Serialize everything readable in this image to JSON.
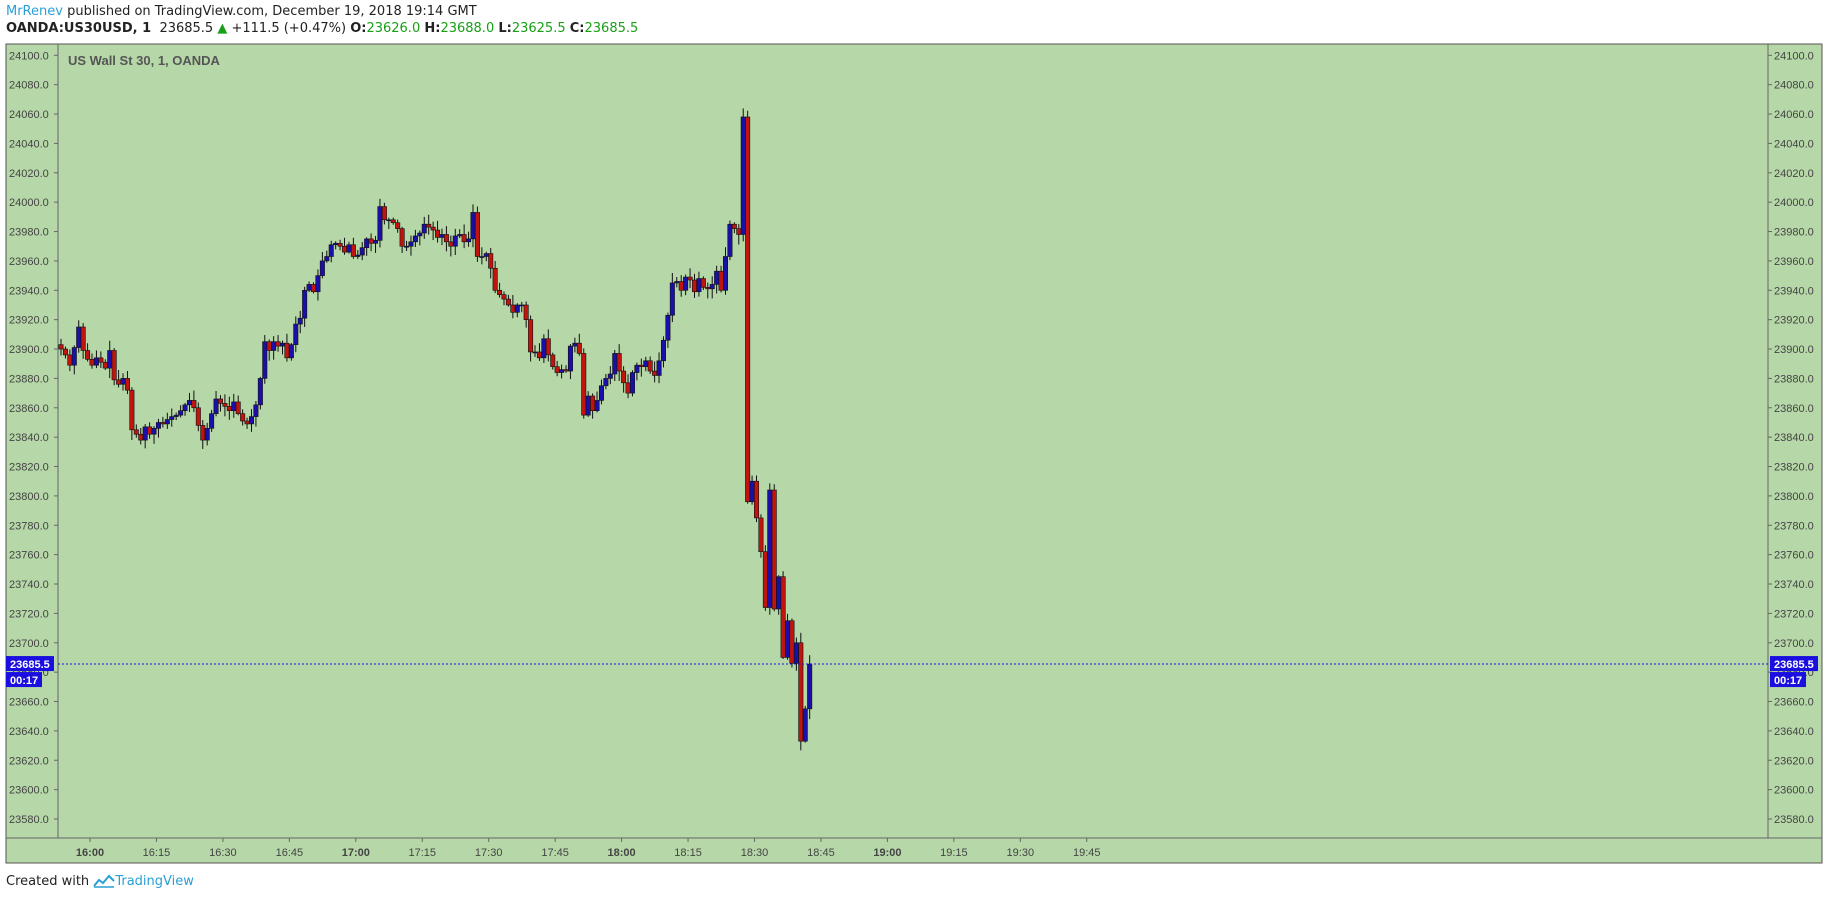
{
  "header": {
    "author": "MrRenev",
    "published_text": "published on TradingView.com, December 19, 2018 19:14 GMT",
    "symbol": "OANDA:US30USD, 1",
    "last_price": "23685.5",
    "change_arrow": "▲",
    "change": "+111.5 (+0.47%)",
    "open_label": "O:",
    "open": "23626.0",
    "high_label": "H:",
    "high": "23688.0",
    "low_label": "L:",
    "low": "23625.5",
    "close_label": "C:",
    "close": "23685.5"
  },
  "footer": {
    "created_with": "Created with",
    "brand": "TradingView"
  },
  "colors": {
    "background": "#b6d7a8",
    "bullish": "#1a0fa8",
    "bearish": "#c0140e",
    "wick": "#111111",
    "price_line": "#1a0fe0",
    "price_tag": "#1a0fe0",
    "text": "#444444"
  },
  "chart_data": {
    "type": "candlestick",
    "title": "US Wall St 30, 1, OANDA",
    "xlabel": "",
    "ylabel": "",
    "ylim": [
      23570,
      24110
    ],
    "grid": false,
    "y_ticks": [
      23580,
      23600,
      23620,
      23640,
      23660,
      23680,
      23700,
      23720,
      23740,
      23760,
      23780,
      23800,
      23820,
      23840,
      23860,
      23880,
      23900,
      23920,
      23940,
      23960,
      23980,
      24000,
      24020,
      24040,
      24060,
      24080,
      24100
    ],
    "x_ticks": [
      {
        "label": "16:00",
        "bold": true
      },
      {
        "label": "16:15",
        "bold": false
      },
      {
        "label": "16:30",
        "bold": false
      },
      {
        "label": "16:45",
        "bold": false
      },
      {
        "label": "17:00",
        "bold": true
      },
      {
        "label": "17:15",
        "bold": false
      },
      {
        "label": "17:30",
        "bold": false
      },
      {
        "label": "17:45",
        "bold": false
      },
      {
        "label": "18:00",
        "bold": true
      },
      {
        "label": "18:15",
        "bold": false
      },
      {
        "label": "18:30",
        "bold": false
      },
      {
        "label": "18:45",
        "bold": false
      },
      {
        "label": "19:00",
        "bold": true
      },
      {
        "label": "19:15",
        "bold": false
      },
      {
        "label": "19:30",
        "bold": false
      },
      {
        "label": "19:45",
        "bold": false
      }
    ],
    "current_price": "23685.5",
    "countdown": "00:17",
    "closes": [
      23900,
      23896,
      23889,
      23901,
      23915,
      23899,
      23893,
      23889,
      23894,
      23891,
      23887,
      23899,
      23879,
      23876,
      23880,
      23872,
      23845,
      23842,
      23838,
      23847,
      23842,
      23846,
      23850,
      23849,
      23852,
      23854,
      23855,
      23858,
      23862,
      23865,
      23860,
      23848,
      23838,
      23846,
      23856,
      23866,
      23863,
      23861,
      23858,
      23864,
      23856,
      23851,
      23849,
      23854,
      23862,
      23880,
      23905,
      23899,
      23905,
      23902,
      23904,
      23894,
      23903,
      23917,
      23921,
      23940,
      23944,
      23939,
      23950,
      23960,
      23963,
      23971,
      23972,
      23970,
      23966,
      23971,
      23963,
      23964,
      23969,
      23975,
      23972,
      23974,
      23997,
      23988,
      23988,
      23986,
      23982,
      23970,
      23970,
      23973,
      23977,
      23979,
      23985,
      23983,
      23981,
      23976,
      23978,
      23973,
      23970,
      23977,
      23978,
      23973,
      23975,
      23993,
      23963,
      23963,
      23965,
      23955,
      23940,
      23937,
      23934,
      23930,
      23925,
      23930,
      23930,
      23920,
      23898,
      23898,
      23894,
      23907,
      23896,
      23888,
      23884,
      23886,
      23885,
      23902,
      23904,
      23897,
      23855,
      23868,
      23858,
      23865,
      23875,
      23880,
      23883,
      23897,
      23885,
      23877,
      23870,
      23884,
      23889,
      23888,
      23892,
      23885,
      23882,
      23892,
      23906,
      23923,
      23945,
      23946,
      23940,
      23949,
      23947,
      23939,
      23948,
      23942,
      23941,
      23944,
      23953,
      23940,
      23963,
      23985,
      23982,
      23978,
      24058,
      23796,
      23810,
      23785,
      23762,
      23724,
      23804,
      23723,
      23745,
      23690,
      23715,
      23686,
      23700,
      23633,
      23655,
      23685.5
    ]
  }
}
